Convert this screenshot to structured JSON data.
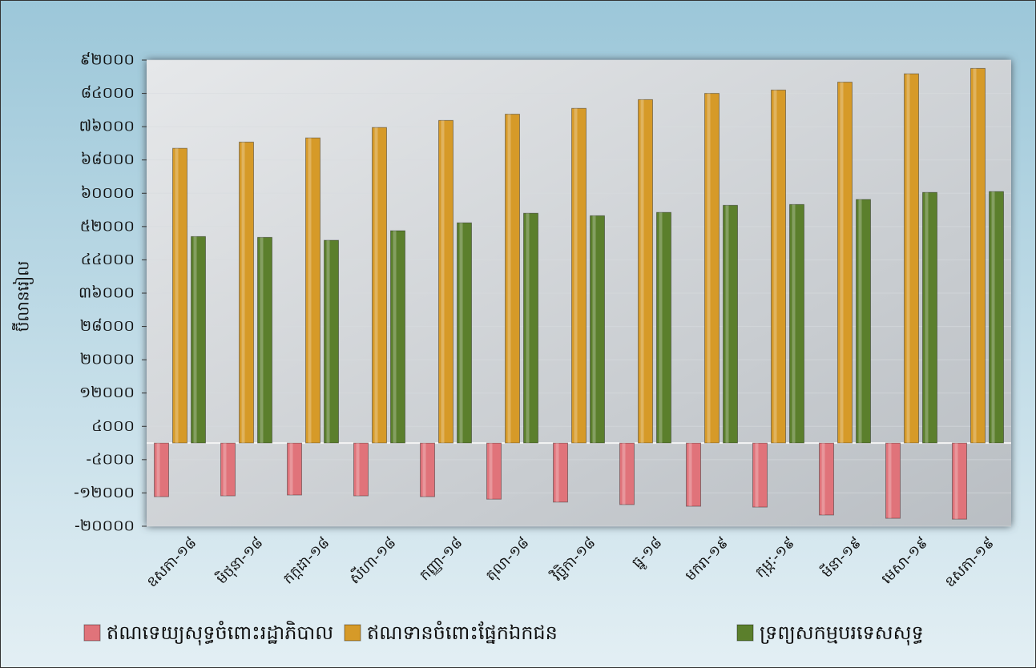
{
  "chart_data": {
    "type": "bar",
    "y_label": "ប៊ីលានរៀល",
    "categories": [
      "ឧសភា-១៨",
      "មិថុនា-១៨",
      "កក្កដា-១៨",
      "សីហា-១៨",
      "កញ្ញា-១៨",
      "តុលា-១៨",
      "វិច្ឆិកា-១៨",
      "ធ្នូ-១៨",
      "មករា-១៩",
      "កុម្ភៈ-១៩",
      "មីនា-១៩",
      "មេសា-១៩",
      "ឧសភា-១៩"
    ],
    "series": [
      {
        "name": "ឥណទេយ្យសុទ្ធចំពោះរដ្ឋាភិបាល",
        "color": "#e0737a",
        "values": [
          -12900,
          -12700,
          -12500,
          -12700,
          -12900,
          -13500,
          -14200,
          -14800,
          -15200,
          -15400,
          -17300,
          -18100,
          -18300
        ]
      },
      {
        "name": "ឥណទានចំពោះផ្នែកឯកជន",
        "color": "#d69a28",
        "values": [
          70800,
          72300,
          73300,
          75800,
          77500,
          79000,
          80400,
          82500,
          84000,
          84800,
          86700,
          88700,
          90000
        ]
      },
      {
        "name": "ទ្រព្យសកម្មបរទេសសុទ្ធ",
        "color": "#5b7f2c",
        "values": [
          49600,
          49400,
          48700,
          51000,
          52900,
          55200,
          54600,
          55400,
          57100,
          57300,
          58500,
          60200,
          60400
        ]
      }
    ],
    "ylim": [
      -20000,
      92000
    ],
    "yticks": [
      {
        "value": -20000,
        "label": "-២០០០០"
      },
      {
        "value": -12000,
        "label": "-១២០០០"
      },
      {
        "value": -4000,
        "label": "-៤០០០"
      },
      {
        "value": 4000,
        "label": "៤០០០"
      },
      {
        "value": 12000,
        "label": "១២០០០"
      },
      {
        "value": 20000,
        "label": "២០០០០"
      },
      {
        "value": 28000,
        "label": "២៨០០០"
      },
      {
        "value": 36000,
        "label": "៣៦០០០"
      },
      {
        "value": 44000,
        "label": "៤៤០០០"
      },
      {
        "value": 52000,
        "label": "៥២០០០"
      },
      {
        "value": 60000,
        "label": "៦០០០០"
      },
      {
        "value": 68000,
        "label": "៦៨០០០"
      },
      {
        "value": 76000,
        "label": "៧៦០០០"
      },
      {
        "value": 84000,
        "label": "៨៤០០០"
      },
      {
        "value": 92000,
        "label": "៩២០០០"
      }
    ],
    "grid": true,
    "legend": "bottom"
  }
}
